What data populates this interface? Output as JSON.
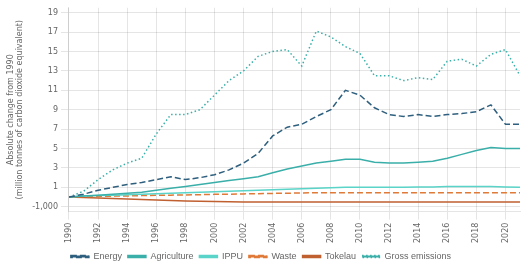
{
  "chart_data": {
    "type": "line",
    "y_label": "Absolute change from 1990\n(million tonnes of carbon dioxide equivalent)",
    "x": [
      1990,
      1991,
      1992,
      1993,
      1994,
      1995,
      1996,
      1997,
      1998,
      1999,
      2000,
      2001,
      2002,
      2003,
      2004,
      2005,
      2006,
      2007,
      2008,
      2009,
      2010,
      2011,
      2012,
      2013,
      2014,
      2015,
      2016,
      2017,
      2018,
      2019,
      2020,
      2021
    ],
    "series": [
      {
        "name": "Energy",
        "color": "#2e5f7e",
        "line_style": "dashed",
        "values": [
          0.0,
          0.3,
          0.7,
          1.0,
          1.3,
          1.5,
          1.8,
          2.1,
          1.8,
          2.0,
          2.3,
          2.8,
          3.5,
          4.5,
          6.3,
          7.2,
          7.5,
          8.3,
          9.0,
          11.0,
          10.5,
          9.2,
          8.5,
          8.3,
          8.5,
          8.3,
          8.5,
          8.6,
          8.8,
          9.5,
          7.5,
          7.5
        ]
      },
      {
        "name": "Agriculture",
        "color": "#3aafa9",
        "line_style": "solid",
        "values": [
          0.0,
          0.1,
          0.2,
          0.3,
          0.4,
          0.5,
          0.7,
          0.9,
          1.1,
          1.3,
          1.5,
          1.7,
          1.9,
          2.1,
          2.5,
          2.9,
          3.2,
          3.5,
          3.7,
          3.9,
          3.9,
          3.6,
          3.5,
          3.5,
          3.6,
          3.7,
          4.0,
          4.4,
          4.8,
          5.1,
          5.0,
          5.0
        ]
      },
      {
        "name": "IPPU",
        "color": "#5ad4c8",
        "line_style": "solid",
        "values": [
          0.0,
          0.1,
          0.15,
          0.2,
          0.25,
          0.3,
          0.35,
          0.4,
          0.45,
          0.5,
          0.55,
          0.6,
          0.65,
          0.7,
          0.75,
          0.8,
          0.85,
          0.9,
          0.95,
          1.0,
          1.0,
          1.0,
          1.0,
          1.0,
          1.05,
          1.05,
          1.1,
          1.1,
          1.1,
          1.1,
          1.05,
          1.0
        ]
      },
      {
        "name": "Waste",
        "color": "#e07a38",
        "line_style": "dashed",
        "values": [
          0.0,
          0.05,
          0.07,
          0.1,
          0.12,
          0.15,
          0.18,
          0.2,
          0.22,
          0.25,
          0.28,
          0.3,
          0.33,
          0.35,
          0.38,
          0.4,
          0.42,
          0.45,
          0.45,
          0.45,
          0.45,
          0.45,
          0.45,
          0.45,
          0.45,
          0.45,
          0.45,
          0.45,
          0.45,
          0.45,
          0.45,
          0.45
        ]
      },
      {
        "name": "Tokelau",
        "color": "#c06030",
        "line_style": "solid",
        "values": [
          0.0,
          -0.05,
          -0.1,
          -0.15,
          -0.2,
          -0.25,
          -0.3,
          -0.35,
          -0.4,
          -0.42,
          -0.45,
          -0.47,
          -0.5,
          -0.5,
          -0.5,
          -0.5,
          -0.5,
          -0.5,
          -0.5,
          -0.5,
          -0.5,
          -0.5,
          -0.5,
          -0.5,
          -0.5,
          -0.5,
          -0.5,
          -0.5,
          -0.5,
          -0.5,
          -0.5,
          -0.5
        ]
      },
      {
        "name": "Gross emissions",
        "color": "#3aafa9",
        "line_style": "dotted",
        "values": [
          0.0,
          0.6,
          1.8,
          2.8,
          3.5,
          4.0,
          6.5,
          8.5,
          8.5,
          9.0,
          10.5,
          12.0,
          13.0,
          14.5,
          15.0,
          15.2,
          13.5,
          17.1,
          16.5,
          15.5,
          14.8,
          12.5,
          12.5,
          12.0,
          12.3,
          12.1,
          14.0,
          14.2,
          13.5,
          14.7,
          15.2,
          12.5
        ]
      }
    ],
    "xlim": [
      1990,
      2021
    ],
    "xticks": [
      1990,
      1992,
      1994,
      1996,
      1998,
      2000,
      2002,
      2004,
      2006,
      2008,
      2010,
      2012,
      2014,
      2016,
      2018,
      2020
    ],
    "ylim": [
      -1.5,
      19.5
    ],
    "yticks": [
      {
        "value": -1,
        "label": "-1,000"
      },
      1,
      3,
      5,
      7,
      9,
      11,
      13,
      15,
      17,
      19
    ],
    "grid": true,
    "legend": "bottom"
  }
}
